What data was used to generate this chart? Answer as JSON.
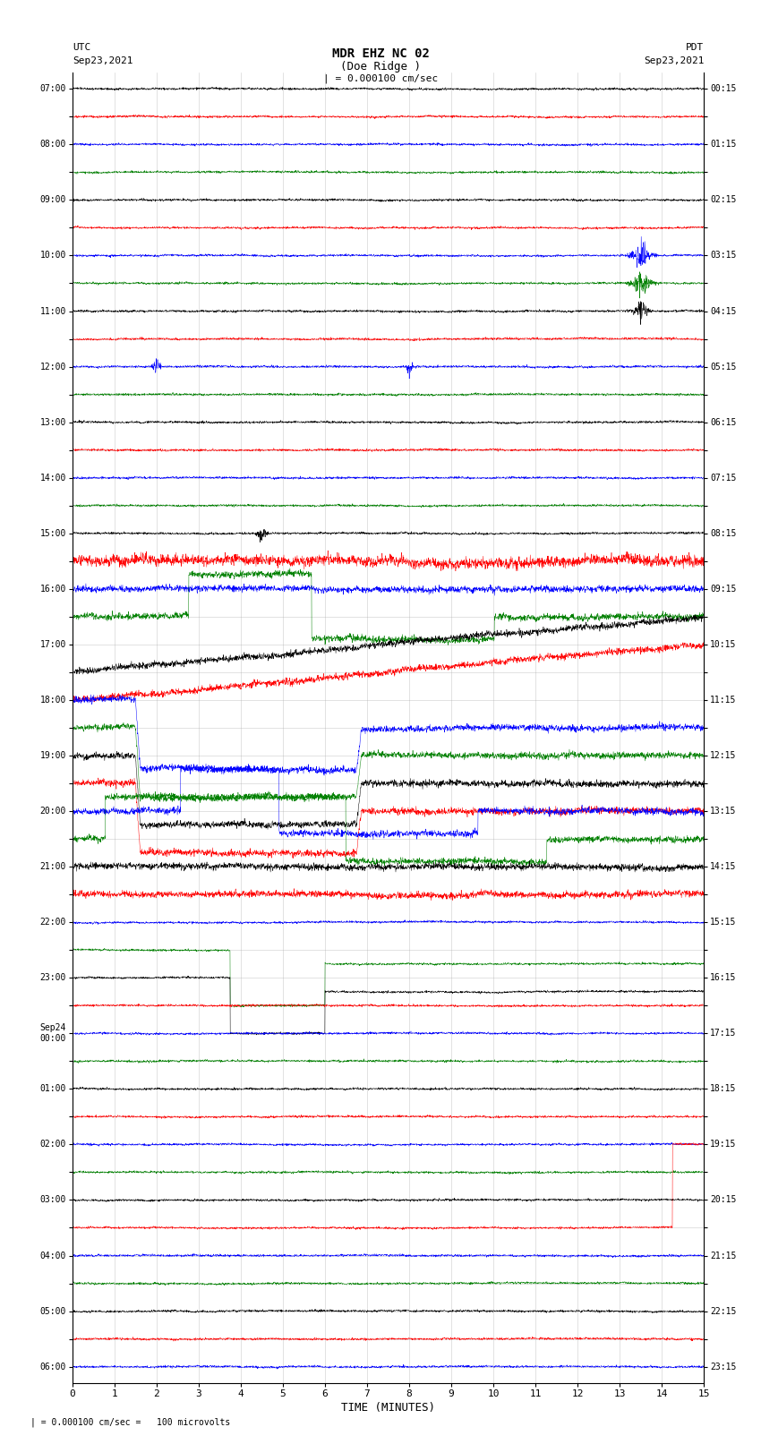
{
  "title_line1": "MDR EHZ NC 02",
  "title_line2": "(Doe Ridge )",
  "scale_label": "| = 0.000100 cm/sec",
  "footer_label": "| = 0.000100 cm/sec =   100 microvolts",
  "utc_label": "UTC",
  "utc_date": "Sep23,2021",
  "pdt_label": "PDT",
  "pdt_date": "Sep23,2021",
  "xlabel": "TIME (MINUTES)",
  "xmin": 0,
  "xmax": 15,
  "xticks": [
    0,
    1,
    2,
    3,
    4,
    5,
    6,
    7,
    8,
    9,
    10,
    11,
    12,
    13,
    14,
    15
  ],
  "background_color": "#ffffff",
  "grid_color": "#aaaaaa",
  "trace_colors": [
    "black",
    "red",
    "blue",
    "green"
  ],
  "left_times": [
    "07:00",
    "",
    "08:00",
    "",
    "09:00",
    "",
    "10:00",
    "",
    "11:00",
    "",
    "12:00",
    "",
    "13:00",
    "",
    "14:00",
    "",
    "15:00",
    "",
    "16:00",
    "",
    "17:00",
    "",
    "18:00",
    "",
    "19:00",
    "",
    "20:00",
    "",
    "21:00",
    "",
    "22:00",
    "",
    "23:00",
    "",
    "Sep24\n00:00",
    "",
    "01:00",
    "",
    "02:00",
    "",
    "03:00",
    "",
    "04:00",
    "",
    "05:00",
    "",
    "06:00"
  ],
  "right_times": [
    "00:15",
    "",
    "01:15",
    "",
    "02:15",
    "",
    "03:15",
    "",
    "04:15",
    "",
    "05:15",
    "",
    "06:15",
    "",
    "07:15",
    "",
    "08:15",
    "",
    "09:15",
    "",
    "10:15",
    "",
    "11:15",
    "",
    "12:15",
    "",
    "13:15",
    "",
    "14:15",
    "",
    "15:15",
    "",
    "16:15",
    "",
    "17:15",
    "",
    "18:15",
    "",
    "19:15",
    "",
    "20:15",
    "",
    "21:15",
    "",
    "22:15",
    "",
    "23:15"
  ],
  "num_traces": 47,
  "fig_width": 8.5,
  "fig_height": 16.13
}
